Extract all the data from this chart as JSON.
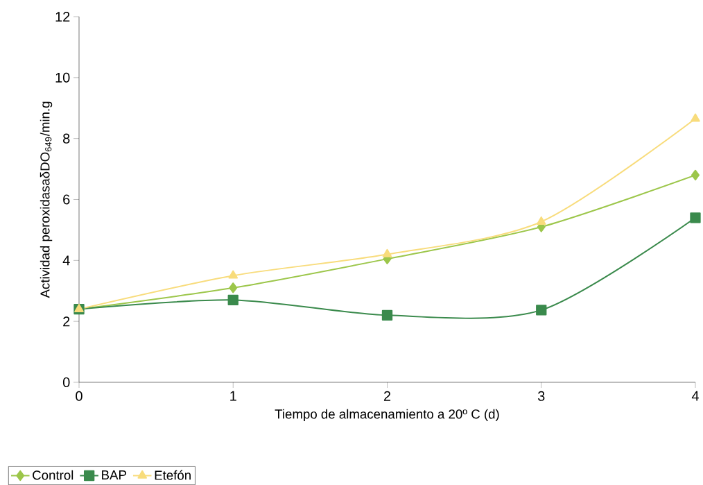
{
  "chart_data": {
    "type": "line",
    "xlabel": "Tiempo de almacenamiento a 20º C (d)",
    "ylabel": "Actividad peroxidasaδDO$_{649}$/min.g",
    "x": [
      0,
      1,
      2,
      3,
      4
    ],
    "xlim": [
      0,
      4
    ],
    "xticks": [
      0,
      1,
      2,
      3,
      4
    ],
    "ylim": [
      0,
      12
    ],
    "yticks": [
      0,
      2,
      4,
      6,
      8,
      10,
      12
    ],
    "grid": false,
    "legend": "bottom left",
    "series": [
      {
        "name": "Control",
        "color": "#9cc64a",
        "marker": "diamond",
        "values": [
          2.4,
          3.1,
          4.05,
          5.1,
          6.8
        ]
      },
      {
        "name": "BAP",
        "color": "#3a8a4c",
        "marker": "square",
        "values": [
          2.4,
          2.7,
          2.2,
          2.37,
          5.4
        ]
      },
      {
        "name": "Etefón",
        "color": "#f8dc7c",
        "marker": "triangle",
        "values": [
          2.4,
          3.5,
          4.2,
          5.27,
          8.65
        ]
      }
    ]
  }
}
